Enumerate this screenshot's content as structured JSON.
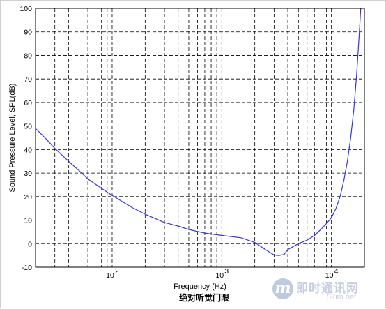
{
  "chart_data": {
    "type": "line",
    "title": "绝对听觉门限",
    "xlabel": "Frequency (Hz)",
    "ylabel": "Sound Pressure Level, SPL(dB)",
    "xscale": "log",
    "xlim": [
      20,
      20000
    ],
    "ylim": [
      -10,
      100
    ],
    "grid": true,
    "y_ticks": [
      -10,
      0,
      10,
      20,
      30,
      40,
      50,
      60,
      70,
      80,
      90,
      100
    ],
    "x_ticks": [
      {
        "value": 100,
        "base": "10",
        "exp": "2"
      },
      {
        "value": 1000,
        "base": "10",
        "exp": "3"
      },
      {
        "value": 10000,
        "base": "10",
        "exp": "4"
      }
    ],
    "line_color": "#3333ee",
    "series": [
      {
        "x": [
          20,
          25,
          30,
          40,
          50,
          60,
          80,
          100,
          150,
          200,
          300,
          400,
          500,
          700,
          1000,
          1500,
          2000,
          2500,
          3000,
          3300,
          3700,
          4000,
          5000,
          6000,
          7000,
          8000,
          9000,
          10000,
          11000,
          12000,
          13000,
          14000,
          15000,
          16000,
          17000,
          18000,
          18500
        ],
        "y": [
          49,
          44.5,
          40.5,
          35,
          31,
          27.5,
          23.5,
          20.5,
          15.5,
          12.5,
          9,
          7.5,
          6,
          4.5,
          3.5,
          2.5,
          0.5,
          -2.5,
          -4.8,
          -5,
          -4.6,
          -2.5,
          0,
          1.5,
          3.5,
          6,
          8.5,
          11,
          15,
          20,
          27,
          35,
          45,
          57,
          72,
          90,
          100
        ]
      }
    ]
  },
  "watermark": {
    "badge": "m",
    "text": "即时通讯网",
    "url": "52im.net"
  }
}
